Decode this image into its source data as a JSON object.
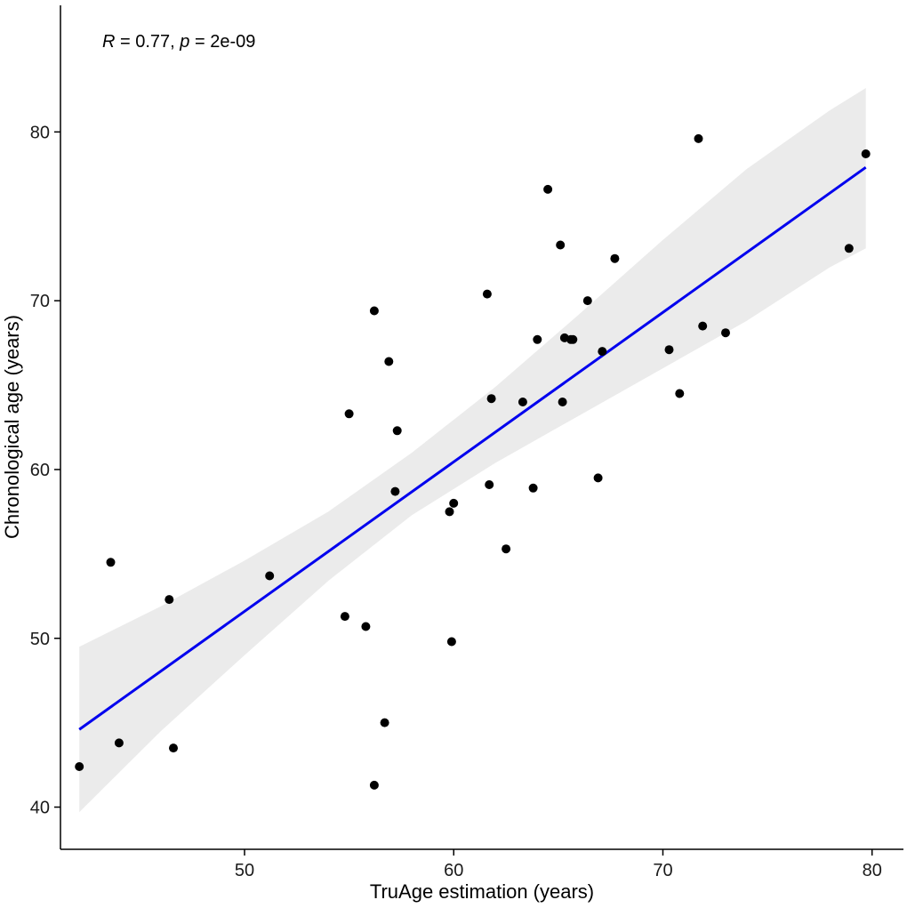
{
  "chart_data": {
    "type": "scatter",
    "xlabel": "TruAge estimation (years)",
    "ylabel": "Chronological age (years)",
    "annotation": {
      "r_symbol": "R",
      "r_text": " = 0.77, ",
      "p_symbol": "p",
      "p_text": " = 2e-09"
    },
    "xlim": [
      41.2,
      81.5
    ],
    "ylim": [
      37.5,
      87.5
    ],
    "x_ticks": [
      50,
      60,
      70,
      80
    ],
    "y_ticks": [
      40,
      50,
      60,
      70,
      80
    ],
    "grid": false,
    "legend": "none",
    "colors": {
      "points": "#000000",
      "regression_line": "#0000ee",
      "confidence_band": "#ebebeb",
      "axis": "#000000"
    },
    "points": [
      {
        "x": 42.1,
        "y": 42.4
      },
      {
        "x": 43.6,
        "y": 54.5
      },
      {
        "x": 44.0,
        "y": 43.8
      },
      {
        "x": 46.4,
        "y": 52.3
      },
      {
        "x": 46.6,
        "y": 43.5
      },
      {
        "x": 51.2,
        "y": 53.7
      },
      {
        "x": 54.8,
        "y": 51.3
      },
      {
        "x": 55.0,
        "y": 63.3
      },
      {
        "x": 55.8,
        "y": 50.7
      },
      {
        "x": 56.2,
        "y": 69.4
      },
      {
        "x": 56.2,
        "y": 41.3
      },
      {
        "x": 56.7,
        "y": 45.0
      },
      {
        "x": 56.9,
        "y": 66.4
      },
      {
        "x": 57.2,
        "y": 58.7
      },
      {
        "x": 57.3,
        "y": 62.3
      },
      {
        "x": 59.8,
        "y": 57.5
      },
      {
        "x": 59.9,
        "y": 49.8
      },
      {
        "x": 60.0,
        "y": 58.0
      },
      {
        "x": 61.6,
        "y": 70.4
      },
      {
        "x": 61.7,
        "y": 59.1
      },
      {
        "x": 61.8,
        "y": 64.2
      },
      {
        "x": 62.5,
        "y": 55.3
      },
      {
        "x": 63.3,
        "y": 64.0
      },
      {
        "x": 63.8,
        "y": 58.9
      },
      {
        "x": 64.0,
        "y": 67.7
      },
      {
        "x": 64.5,
        "y": 76.6
      },
      {
        "x": 65.1,
        "y": 73.3
      },
      {
        "x": 65.2,
        "y": 64.0
      },
      {
        "x": 65.3,
        "y": 67.8
      },
      {
        "x": 65.6,
        "y": 67.7
      },
      {
        "x": 65.7,
        "y": 67.7
      },
      {
        "x": 66.4,
        "y": 70.0
      },
      {
        "x": 66.9,
        "y": 59.5
      },
      {
        "x": 67.1,
        "y": 67.0
      },
      {
        "x": 67.7,
        "y": 72.5
      },
      {
        "x": 70.3,
        "y": 67.1
      },
      {
        "x": 70.8,
        "y": 64.5
      },
      {
        "x": 71.7,
        "y": 79.6
      },
      {
        "x": 71.9,
        "y": 68.5
      },
      {
        "x": 73.0,
        "y": 68.1
      },
      {
        "x": 78.9,
        "y": 73.1
      },
      {
        "x": 79.7,
        "y": 78.7
      }
    ],
    "regression": {
      "x": [
        42.1,
        79.7
      ],
      "y": [
        44.6,
        77.9
      ]
    },
    "confidence_band": {
      "x": [
        42.1,
        46,
        50,
        54,
        58,
        62,
        66,
        70,
        74,
        78,
        79.7
      ],
      "upper": [
        49.5,
        51.9,
        54.6,
        57.5,
        61.0,
        64.9,
        69.2,
        73.6,
        77.8,
        81.3,
        82.6
      ],
      "lower": [
        39.7,
        44.5,
        49.0,
        53.4,
        57.3,
        60.4,
        63.2,
        66.0,
        68.8,
        72.0,
        73.1
      ]
    }
  }
}
